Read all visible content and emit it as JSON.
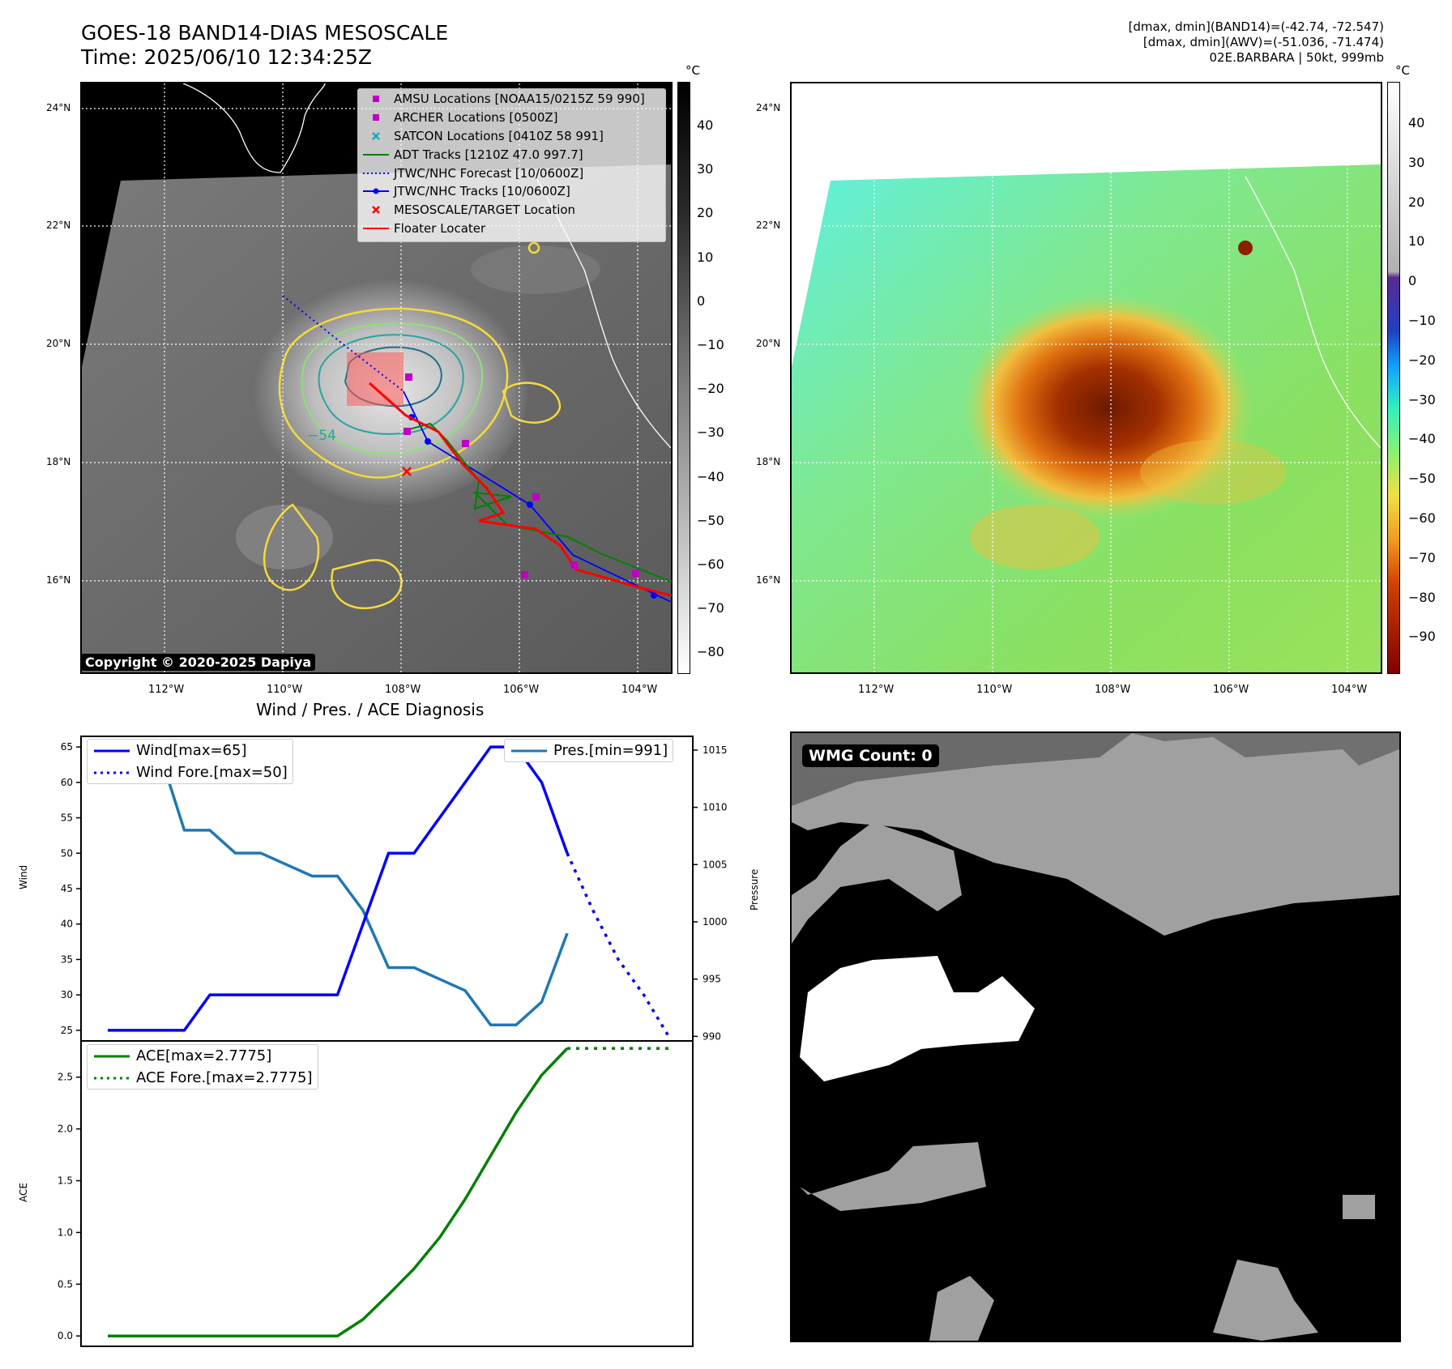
{
  "header": {
    "title_line1": "GOES-18 BAND14-DIAS MESOSCALE",
    "title_line2": "Time: 2025/06/10 12:34:25Z",
    "right_line1": "[dmax, dmin](BAND14)=(-42.74, -72.547)",
    "right_line2": "[dmax, dmin](AWV)=(-51.036, -71.474)",
    "right_line3": "02E.BARBARA | 50kt, 999mb"
  },
  "maps": {
    "lat_labels": [
      "24°N",
      "22°N",
      "20°N",
      "18°N",
      "16°N"
    ],
    "lon_labels": [
      "112°W",
      "110°W",
      "108°W",
      "106°W",
      "104°W"
    ],
    "contour_label": "−54",
    "copyright": "Copyright © 2020-2025 Dapiya",
    "colorbar1": {
      "unit": "°C",
      "ticks": [
        "40",
        "30",
        "20",
        "10",
        "0",
        "−10",
        "−20",
        "−30",
        "−40",
        "−50",
        "−60",
        "−70",
        "−80"
      ]
    },
    "colorbar2": {
      "unit": "°C",
      "ticks": [
        "40",
        "30",
        "20",
        "10",
        "0",
        "−10",
        "−20",
        "−30",
        "−40",
        "−50",
        "−60",
        "−70",
        "−80",
        "−90"
      ]
    },
    "legend": [
      {
        "label": "AMSU Locations [NOAA15/0215Z 59 990]",
        "marker": "square",
        "color": "#c000c0"
      },
      {
        "label": "ARCHER Locations [0500Z]",
        "marker": "square",
        "color": "#c000c0"
      },
      {
        "label": "SATCON Locations [0410Z 58 991]",
        "marker": "x",
        "color": "#10b0b0"
      },
      {
        "label": "ADT Tracks [1210Z 47.0 997.7]",
        "marker": "line",
        "color": "#008000"
      },
      {
        "label": "JTWC/NHC Forecast [10/0600Z]",
        "marker": "dotted",
        "color": "#0000ff"
      },
      {
        "label": "JTWC/NHC Tracks [10/0600Z]",
        "marker": "dotline",
        "color": "#0000ff"
      },
      {
        "label": "MESOSCALE/TARGET Location",
        "marker": "x",
        "color": "#ff0000"
      },
      {
        "label": "Floater Locater",
        "marker": "line",
        "color": "#ff0000"
      }
    ]
  },
  "wmg": {
    "label": "WMG Count: 0"
  },
  "chart_data": [
    {
      "type": "line",
      "title": "Wind / Pres. / ACE Diagnosis",
      "ylabel": "Wind",
      "ylabel_right": "Pressure",
      "ylim": [
        23.5,
        66.5
      ],
      "ylim_right": [
        989.6,
        1016.2
      ],
      "yticks": [
        25,
        30,
        35,
        40,
        45,
        50,
        55,
        60,
        65
      ],
      "yticks_right": [
        990,
        995,
        1000,
        1005,
        1010,
        1015
      ],
      "x": [
        0,
        1,
        2,
        3,
        4,
        5,
        6,
        7,
        8,
        9,
        10,
        11,
        12,
        13,
        14,
        15,
        16,
        17,
        18,
        19,
        20
      ],
      "series": [
        {
          "name": "Wind[max=65]",
          "color": "#0000ff",
          "style": "solid",
          "axis": "left",
          "x": [
            0,
            1,
            2,
            3,
            4,
            5,
            6,
            7,
            8,
            9,
            10,
            11,
            12,
            13,
            14,
            15,
            16,
            17,
            18
          ],
          "values": [
            25,
            25,
            25,
            25,
            30,
            30,
            30,
            30,
            30,
            30,
            40,
            50,
            50,
            55,
            60,
            65,
            65,
            60,
            50
          ]
        },
        {
          "name": "Wind Fore.[max=50]",
          "color": "#0000ff",
          "style": "dotted",
          "axis": "left",
          "x": [
            18,
            19,
            20,
            21,
            22
          ],
          "values": [
            50,
            42,
            35,
            30,
            24
          ]
        },
        {
          "name": "Pres.[min=991]",
          "color": "#1f77b4",
          "style": "solid",
          "axis": "right",
          "x": [
            0,
            1,
            2,
            3,
            4,
            5,
            6,
            7,
            8,
            9,
            10,
            11,
            12,
            13,
            14,
            15,
            16,
            17,
            18
          ],
          "values": [
            1015,
            1015,
            1015,
            1008,
            1008,
            1006,
            1006,
            1005,
            1004,
            1004,
            1001,
            996,
            996,
            995,
            994,
            991,
            991,
            993,
            999
          ]
        }
      ]
    },
    {
      "type": "line",
      "ylabel": "ACE",
      "ylim": [
        -0.1,
        2.85
      ],
      "yticks": [
        0.0,
        0.5,
        1.0,
        1.5,
        2.0,
        2.5
      ],
      "ytick_labels": [
        "0.0",
        "0.5",
        "1.0",
        "1.5",
        "2.0",
        "2.5"
      ],
      "series": [
        {
          "name": "ACE[max=2.7775]",
          "color": "#008000",
          "style": "solid",
          "x": [
            0,
            1,
            2,
            3,
            4,
            5,
            6,
            7,
            8,
            9,
            10,
            11,
            12,
            13,
            14,
            15,
            16,
            17,
            18
          ],
          "values": [
            0,
            0,
            0,
            0,
            0,
            0,
            0,
            0,
            0,
            0,
            0.16,
            0.4,
            0.65,
            0.95,
            1.32,
            1.74,
            2.16,
            2.52,
            2.7775
          ]
        },
        {
          "name": "ACE Fore.[max=2.7775]",
          "color": "#008000",
          "style": "dotted",
          "x": [
            18,
            22
          ],
          "values": [
            2.7775,
            2.7775
          ]
        }
      ]
    }
  ]
}
